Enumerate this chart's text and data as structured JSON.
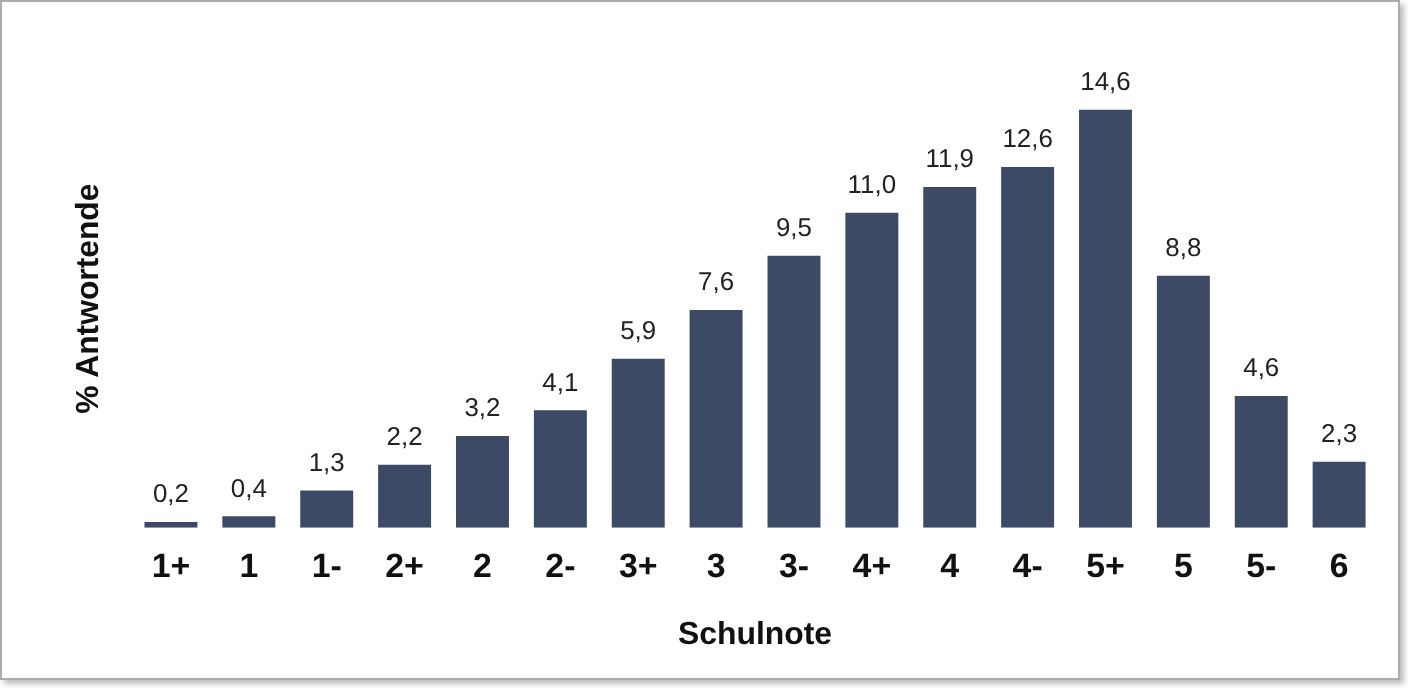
{
  "chart_data": {
    "type": "bar",
    "xlabel": "Schulnote",
    "ylabel": "% Antwortende",
    "categories": [
      "1+",
      "1",
      "1-",
      "2+",
      "2",
      "2-",
      "3+",
      "3",
      "3-",
      "4+",
      "4",
      "4-",
      "5+",
      "5",
      "5-",
      "6"
    ],
    "values": [
      0.2,
      0.4,
      1.3,
      2.2,
      3.2,
      4.1,
      5.9,
      7.6,
      9.5,
      11.0,
      11.9,
      12.6,
      14.6,
      8.8,
      4.6,
      2.3
    ],
    "value_labels": [
      "0,2",
      "0,4",
      "1,3",
      "2,2",
      "3,2",
      "4,1",
      "5,9",
      "7,6",
      "9,5",
      "11,0",
      "11,9",
      "12,6",
      "14,6",
      "8,8",
      "4,6",
      "2,3"
    ],
    "color": "#3d4a66",
    "grid": false,
    "legend": false
  }
}
